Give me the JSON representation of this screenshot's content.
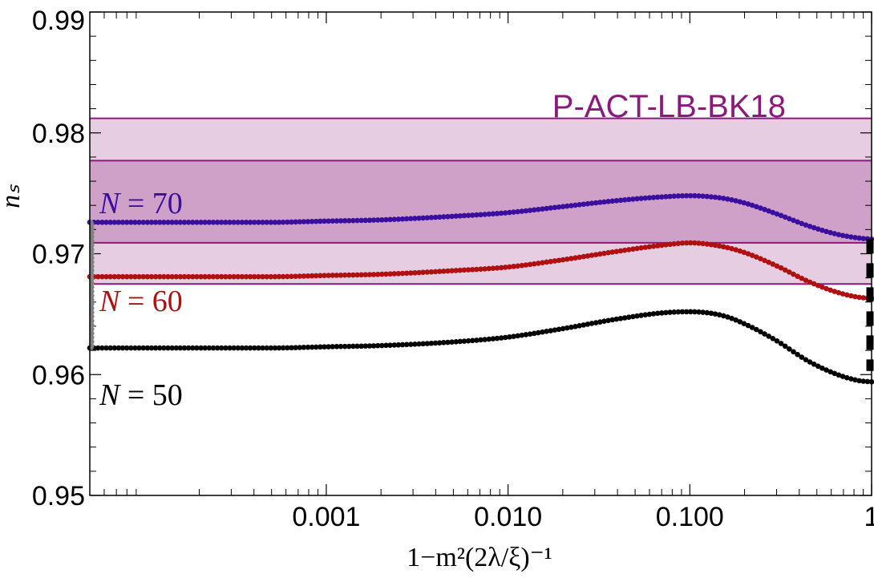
{
  "chart_data": {
    "type": "scatter",
    "title": "",
    "xlabel": "1−m²(2λ/ξ)⁻¹",
    "ylabel": "nₛ",
    "xscale": "log",
    "xlim": [
      5e-05,
      1.0
    ],
    "ylim": [
      0.95,
      0.99
    ],
    "xticks": [
      {
        "value": 0.001,
        "label": "0.001"
      },
      {
        "value": 0.01,
        "label": "0.010"
      },
      {
        "value": 0.1,
        "label": "0.100"
      },
      {
        "value": 1,
        "label": "1"
      }
    ],
    "yticks": [
      {
        "value": 0.95,
        "label": "0.95"
      },
      {
        "value": 0.96,
        "label": "0.96"
      },
      {
        "value": 0.97,
        "label": "0.97"
      },
      {
        "value": 0.98,
        "label": "0.98"
      },
      {
        "value": 0.99,
        "label": "0.99"
      }
    ],
    "bands": {
      "label": "P-ACT-LB-BK18",
      "color": "#8b1a7a",
      "outer": [
        0.9675,
        0.9812
      ],
      "inner": [
        0.9709,
        0.9777
      ]
    },
    "series": [
      {
        "name": "N = 70",
        "color": "#3a0fa0",
        "points": [
          [
            5e-05,
            0.9726
          ],
          [
            0.0001,
            0.9726
          ],
          [
            0.0002,
            0.9726
          ],
          [
            0.0005,
            0.9726
          ],
          [
            0.001,
            0.9727
          ],
          [
            0.002,
            0.9728
          ],
          [
            0.005,
            0.9731
          ],
          [
            0.01,
            0.9734
          ],
          [
            0.02,
            0.9739
          ],
          [
            0.04,
            0.9744
          ],
          [
            0.07,
            0.9747
          ],
          [
            0.1,
            0.9748
          ],
          [
            0.15,
            0.9746
          ],
          [
            0.2,
            0.9742
          ],
          [
            0.3,
            0.9733
          ],
          [
            0.45,
            0.9723
          ],
          [
            0.65,
            0.9716
          ],
          [
            0.85,
            0.9713
          ],
          [
            1.0,
            0.9712
          ]
        ]
      },
      {
        "name": "N = 60",
        "color": "#b01010",
        "points": [
          [
            5e-05,
            0.9681
          ],
          [
            0.0001,
            0.9681
          ],
          [
            0.0002,
            0.9681
          ],
          [
            0.0005,
            0.9681
          ],
          [
            0.001,
            0.9682
          ],
          [
            0.002,
            0.9683
          ],
          [
            0.005,
            0.9686
          ],
          [
            0.01,
            0.9689
          ],
          [
            0.02,
            0.9695
          ],
          [
            0.04,
            0.9702
          ],
          [
            0.07,
            0.9707
          ],
          [
            0.1,
            0.9709
          ],
          [
            0.15,
            0.9706
          ],
          [
            0.2,
            0.9701
          ],
          [
            0.3,
            0.969
          ],
          [
            0.45,
            0.9677
          ],
          [
            0.65,
            0.9668
          ],
          [
            0.85,
            0.9664
          ],
          [
            1.0,
            0.9663
          ]
        ]
      },
      {
        "name": "N = 50",
        "color": "#000000",
        "points": [
          [
            5e-05,
            0.9622
          ],
          [
            0.0001,
            0.9622
          ],
          [
            0.0002,
            0.9622
          ],
          [
            0.0005,
            0.9622
          ],
          [
            0.001,
            0.9623
          ],
          [
            0.002,
            0.9624
          ],
          [
            0.005,
            0.9627
          ],
          [
            0.01,
            0.9631
          ],
          [
            0.02,
            0.9638
          ],
          [
            0.04,
            0.9646
          ],
          [
            0.07,
            0.9651
          ],
          [
            0.1,
            0.9652
          ],
          [
            0.15,
            0.9649
          ],
          [
            0.2,
            0.9642
          ],
          [
            0.3,
            0.9628
          ],
          [
            0.45,
            0.9611
          ],
          [
            0.65,
            0.96
          ],
          [
            0.85,
            0.9595
          ],
          [
            1.0,
            0.9594
          ]
        ]
      }
    ],
    "series_labels": [
      {
        "pre": "N",
        "post": " = 70",
        "color": "#3a0fa0"
      },
      {
        "pre": "N",
        "post": " = 60",
        "color": "#b01010"
      },
      {
        "pre": "N",
        "post": " = 50",
        "color": "#000000"
      }
    ],
    "gray_segment": {
      "color": "#808080",
      "y_range": [
        0.9622,
        0.9726
      ]
    },
    "dashed_segment": {
      "color": "#000000",
      "y_range": [
        0.9603,
        0.9712
      ]
    }
  }
}
